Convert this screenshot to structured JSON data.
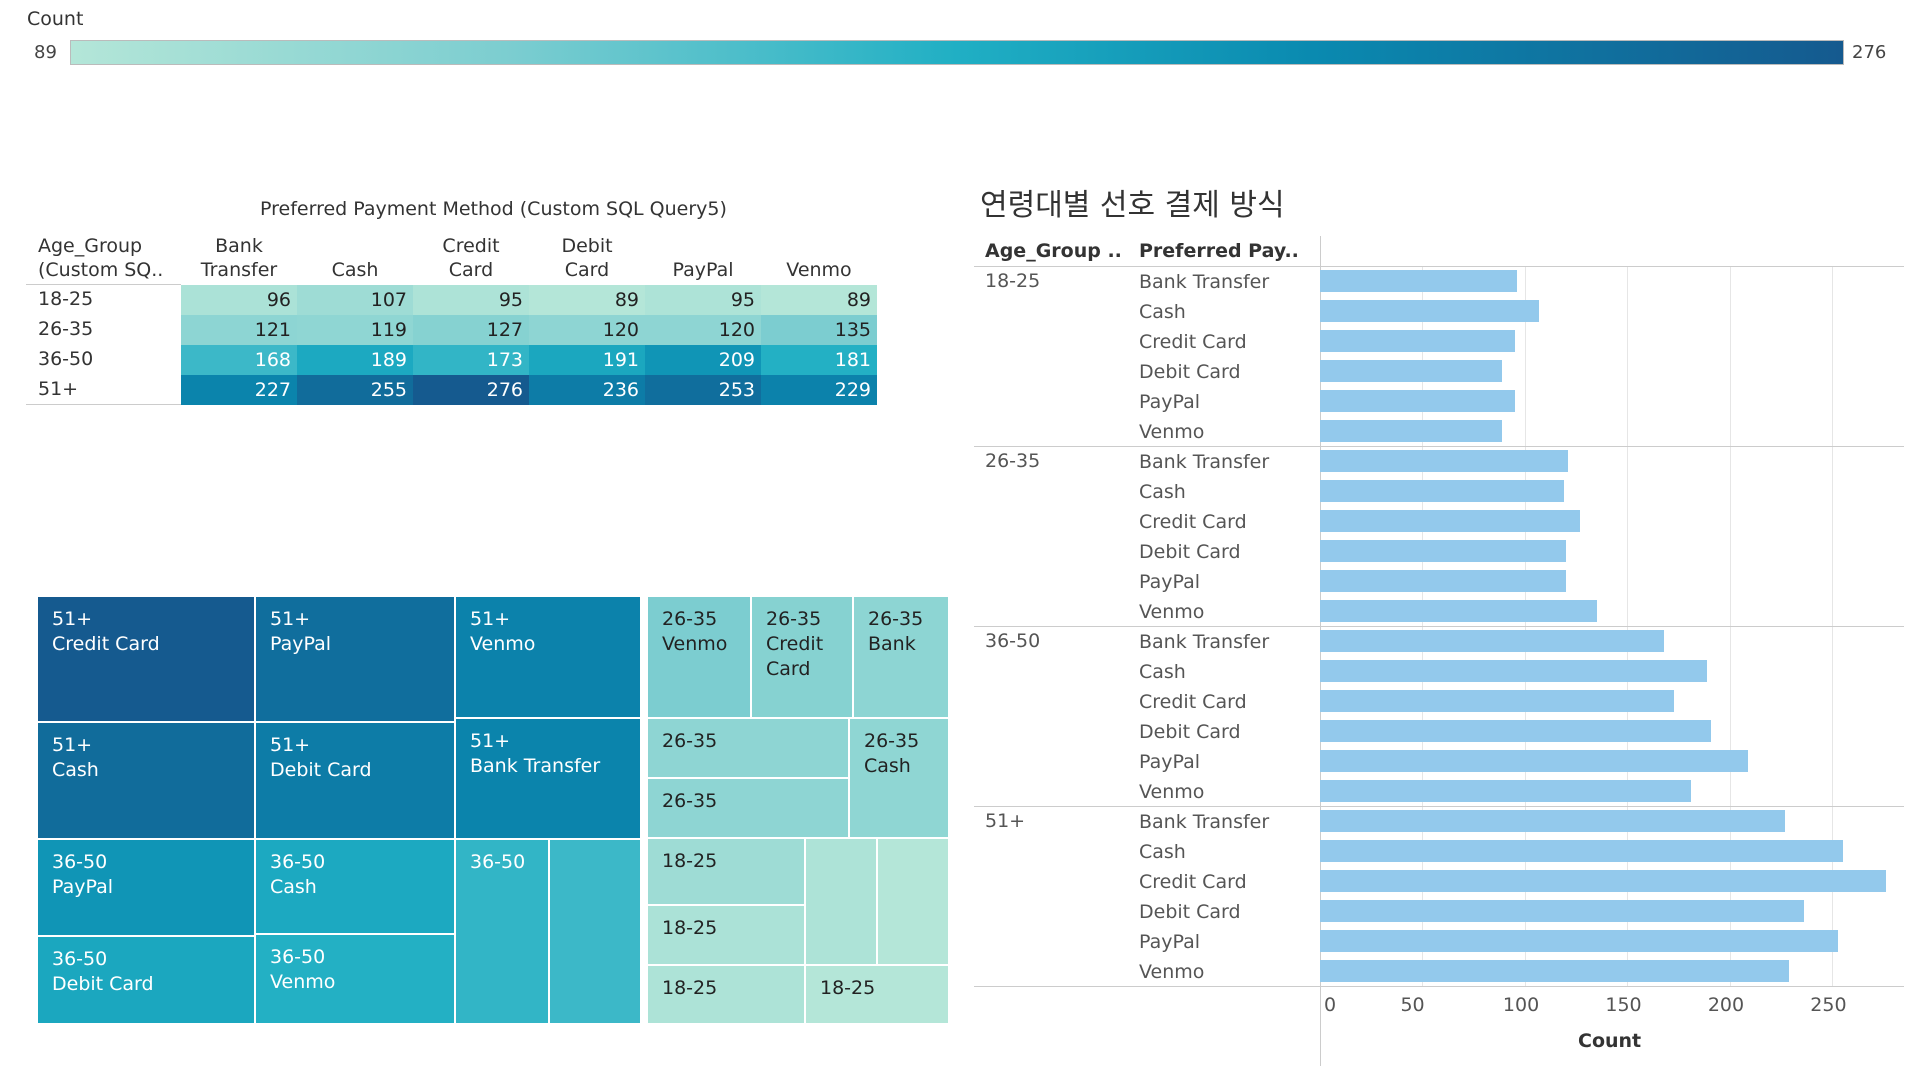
{
  "legend": {
    "title": "Count",
    "min_label": "89",
    "max_label": "276",
    "min": 89,
    "max": 276
  },
  "crosstab": {
    "title": "Preferred Payment Method (Custom SQL Query5)",
    "row_header": "Age_Group\n(Custom SQ..",
    "columns": [
      "Bank\nTransfer",
      "Cash",
      "Credit\nCard",
      "Debit\nCard",
      "PayPal",
      "Venmo"
    ],
    "rows": [
      {
        "label": "18-25",
        "values": [
          96,
          107,
          95,
          89,
          95,
          89
        ]
      },
      {
        "label": "26-35",
        "values": [
          121,
          119,
          127,
          120,
          120,
          135
        ]
      },
      {
        "label": "36-50",
        "values": [
          168,
          189,
          173,
          191,
          209,
          181
        ]
      },
      {
        "label": "51+",
        "values": [
          227,
          255,
          276,
          236,
          253,
          229
        ]
      }
    ]
  },
  "treemap": {
    "cells": [
      {
        "age": "51+",
        "method": "Credit Card",
        "value": 276,
        "label": "51+\nCredit Card"
      },
      {
        "age": "51+",
        "method": "PayPal",
        "value": 253,
        "label": "51+\nPayPal"
      },
      {
        "age": "51+",
        "method": "Venmo",
        "value": 229,
        "label": "51+\nVenmo"
      },
      {
        "age": "51+",
        "method": "Cash",
        "value": 255,
        "label": "51+\nCash"
      },
      {
        "age": "51+",
        "method": "Debit Card",
        "value": 236,
        "label": "51+\nDebit Card"
      },
      {
        "age": "51+",
        "method": "Bank Transfer",
        "value": 227,
        "label": "51+\nBank Transfer"
      },
      {
        "age": "36-50",
        "method": "PayPal",
        "value": 209,
        "label": "36-50\nPayPal"
      },
      {
        "age": "36-50",
        "method": "Cash",
        "value": 189,
        "label": "36-50\nCash"
      },
      {
        "age": "36-50",
        "method": "Debit Card",
        "value": 191,
        "label": "36-50\nDebit Card"
      },
      {
        "age": "36-50",
        "method": "Venmo",
        "value": 181,
        "label": "36-50\nVenmo"
      },
      {
        "age": "36-50",
        "method": "Credit Card",
        "value": 173,
        "label": "36-50"
      },
      {
        "age": "36-50",
        "method": "Bank Transfer",
        "value": 168,
        "label": ""
      },
      {
        "age": "26-35",
        "method": "Venmo",
        "value": 135,
        "label": "26-35\nVenmo"
      },
      {
        "age": "26-35",
        "method": "Credit Card",
        "value": 127,
        "label": "26-35\nCredit\nCard"
      },
      {
        "age": "26-35",
        "method": "Bank Transfer",
        "value": 121,
        "label": "26-35\nBank"
      },
      {
        "age": "26-35",
        "method": "Debit Card",
        "value": 120,
        "label": "26-35"
      },
      {
        "age": "26-35",
        "method": "Cash",
        "value": 119,
        "label": "26-35\nCash"
      },
      {
        "age": "26-35",
        "method": "PayPal",
        "value": 120,
        "label": "26-35"
      },
      {
        "age": "18-25",
        "method": "Cash",
        "value": 107,
        "label": "18-25"
      },
      {
        "age": "18-25",
        "method": "Bank Transfer",
        "value": 96,
        "label": "18-25"
      },
      {
        "age": "18-25",
        "method": "Credit Card",
        "value": 95,
        "label": "18-25"
      },
      {
        "age": "18-25",
        "method": "PayPal",
        "value": 95,
        "label": ""
      },
      {
        "age": "18-25",
        "method": "Debit Card",
        "value": 89,
        "label": ""
      },
      {
        "age": "18-25",
        "method": "Venmo",
        "value": 89,
        "label": "18-25"
      }
    ]
  },
  "chart_data": {
    "type": "bar",
    "title": "연령대별 선호 결제 방식",
    "row_header_1": "Age_Group ..",
    "row_header_2": "Preferred Pay..",
    "xlabel": "Count",
    "xlim": [
      0,
      285
    ],
    "xticks": [
      0,
      50,
      100,
      150,
      200,
      250
    ],
    "groups": [
      {
        "age": "18-25",
        "bars": [
          {
            "method": "Bank Transfer",
            "value": 96
          },
          {
            "method": "Cash",
            "value": 107
          },
          {
            "method": "Credit Card",
            "value": 95
          },
          {
            "method": "Debit Card",
            "value": 89
          },
          {
            "method": "PayPal",
            "value": 95
          },
          {
            "method": "Venmo",
            "value": 89
          }
        ]
      },
      {
        "age": "26-35",
        "bars": [
          {
            "method": "Bank Transfer",
            "value": 121
          },
          {
            "method": "Cash",
            "value": 119
          },
          {
            "method": "Credit Card",
            "value": 127
          },
          {
            "method": "Debit Card",
            "value": 120
          },
          {
            "method": "PayPal",
            "value": 120
          },
          {
            "method": "Venmo",
            "value": 135
          }
        ]
      },
      {
        "age": "36-50",
        "bars": [
          {
            "method": "Bank Transfer",
            "value": 168
          },
          {
            "method": "Cash",
            "value": 189
          },
          {
            "method": "Credit Card",
            "value": 173
          },
          {
            "method": "Debit Card",
            "value": 191
          },
          {
            "method": "PayPal",
            "value": 209
          },
          {
            "method": "Venmo",
            "value": 181
          }
        ]
      },
      {
        "age": "51+",
        "bars": [
          {
            "method": "Bank Transfer",
            "value": 227
          },
          {
            "method": "Cash",
            "value": 255
          },
          {
            "method": "Credit Card",
            "value": 276
          },
          {
            "method": "Debit Card",
            "value": 236
          },
          {
            "method": "PayPal",
            "value": 253
          },
          {
            "method": "Venmo",
            "value": 229
          }
        ]
      }
    ],
    "colors": {
      "bar": "#93c9ec",
      "gridline": "#e6e6e6"
    }
  }
}
